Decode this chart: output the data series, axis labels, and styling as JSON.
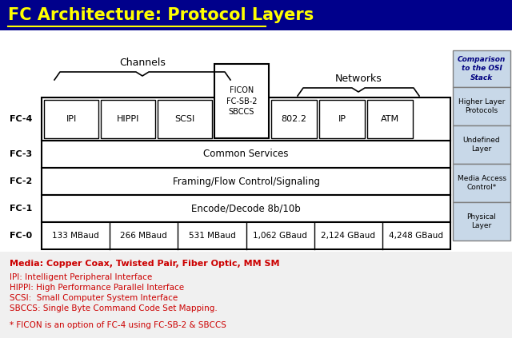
{
  "title": "FC Architecture: Protocol Layers",
  "title_color": "#FFFF00",
  "title_bg": "#00008B",
  "bg_color": "#FFFFFF",
  "body_bg": "#F0F0F0",
  "ficon_label": "FICON\nFC-SB-2\nSBCCS",
  "fc3_label": "Common Services",
  "fc2_label": "Framing/Flow Control/Signaling",
  "fc1_label": "Encode/Decode 8b/10b",
  "fc0_boxes": [
    "133 MBaud",
    "266 MBaud",
    "531 MBaud",
    "1,062 GBaud",
    "2,124 GBaud",
    "4,248 GBaud"
  ],
  "row_labels": [
    "FC-4",
    "FC-3",
    "FC-2",
    "FC-1",
    "FC-0"
  ],
  "channels_label": "Channels",
  "networks_label": "Networks",
  "osi_title": "Comparison\nto the OSI\nStack",
  "osi_layers": [
    "Higher Layer\nProtocols",
    "Undefined\nLayer",
    "Media Access\nControl*",
    "Physical\nLayer"
  ],
  "media_text": "Media: Copper Coax, Twisted Pair, Fiber Optic, MM SM",
  "abbrev_lines": [
    "IPI: Intelligent Peripheral Interface",
    "HIPPI: High Performance Parallel Interface",
    "SCSI:  Small Computer System Interface",
    "SBCCS: Single Byte Command Code Set Mapping."
  ],
  "footnote": "* FICON is an option of FC-4 using FC-SB-2 & SBCCS",
  "red_color": "#CC0000",
  "box_border": "#000000",
  "osi_bg": "#C8D8E8",
  "osi_border": "#808080",
  "left_fc4_boxes": [
    "IPI",
    "HIPPI",
    "SCSI"
  ],
  "right_fc4_boxes": [
    "802.2",
    "IP",
    "ATM"
  ]
}
